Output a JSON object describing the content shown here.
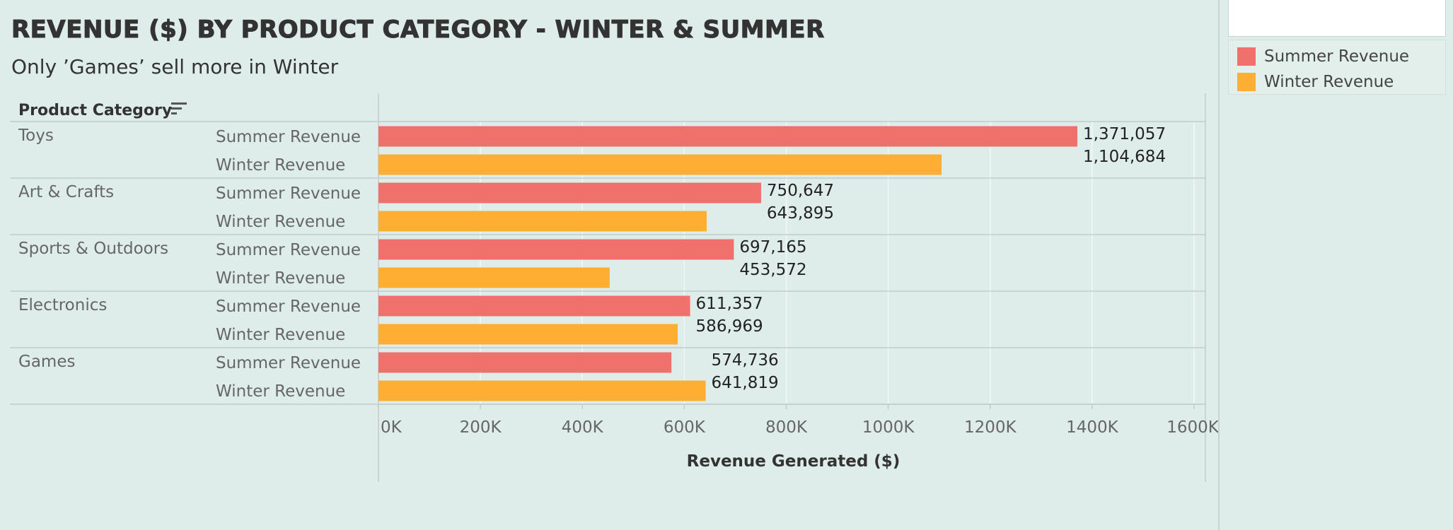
{
  "title": "Revenue ($) by Product Category - Winter & Summer",
  "subtitle": "Only ’Games’ sell more in Winter",
  "header": {
    "category_column": "Product Category"
  },
  "colors": {
    "summer": "#f0706b",
    "winter": "#fdae33",
    "grid": "#f3f8f6",
    "divider": "#c3ccc9",
    "background": "#deede9"
  },
  "legend": {
    "items": [
      {
        "label": "Summer Revenue",
        "color": "#f0706b"
      },
      {
        "label": "Winter Revenue",
        "color": "#fdae33"
      }
    ]
  },
  "chart_data": {
    "type": "bar",
    "orientation": "horizontal",
    "title": "Revenue ($) by Product Category - Winter & Summer",
    "subtitle": "Only ’Games’ sell more in Winter",
    "xlabel": "Revenue Generated ($)",
    "ylabel": "Product Category",
    "xlim": [
      0,
      1600000
    ],
    "xticks": [
      0,
      200000,
      400000,
      600000,
      800000,
      1000000,
      1200000,
      1400000,
      1600000
    ],
    "xtick_labels": [
      "0K",
      "200K",
      "400K",
      "600K",
      "800K",
      "1000K",
      "1200K",
      "1400K",
      "1600K"
    ],
    "grid": "vertical",
    "legend_position": "top-right",
    "categories": [
      "Toys",
      "Art & Crafts",
      "Sports & Outdoors",
      "Electronics",
      "Games"
    ],
    "series": [
      {
        "name": "Summer Revenue",
        "color": "#f0706b",
        "values": [
          1371057,
          750647,
          697165,
          611357,
          574736
        ],
        "labels": [
          "1,371,057",
          "750,647",
          "697,165",
          "611,357",
          "574,736"
        ]
      },
      {
        "name": "Winter Revenue",
        "color": "#fdae33",
        "values": [
          1104684,
          643895,
          453572,
          586969,
          641819
        ],
        "labels": [
          "1,104,684",
          "643,895",
          "453,572",
          "586,969",
          "641,819"
        ]
      }
    ]
  }
}
